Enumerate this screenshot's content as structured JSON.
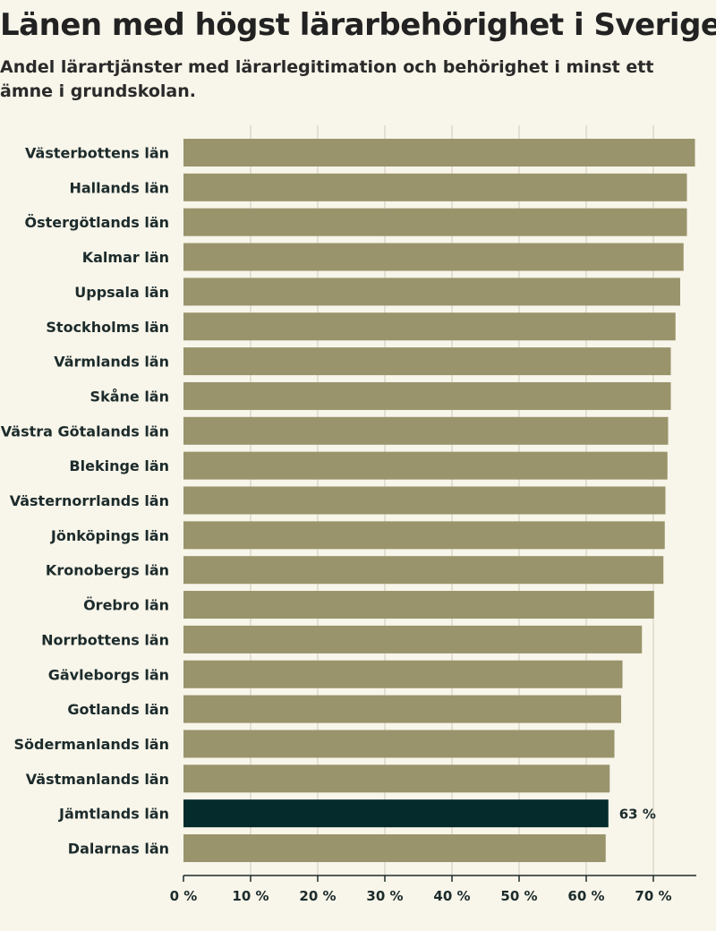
{
  "header": {
    "title": "Länen med högst lärarbehörighet i Sverige",
    "subtitle": "Andel lärartjänster med lärarlegitimation och behörighet i minst ett ämne i grundskolan."
  },
  "colors": {
    "bar": "#99946b",
    "highlight": "#052b2d",
    "grid": "#e3e0d3",
    "axis": "#1c2b2b"
  },
  "chart_data": {
    "type": "bar",
    "orientation": "horizontal",
    "title": "Länen med högst lärarbehörighet i Sverige",
    "subtitle": "Andel lärartjänster med lärarlegitimation och behörighet i minst ett ämne i grundskolan.",
    "categories": [
      "Västerbottens län",
      "Hallands län",
      "Östergötlands län",
      "Kalmar län",
      "Uppsala län",
      "Stockholms län",
      "Värmlands län",
      "Skåne län",
      "Västra Götalands län",
      "Blekinge län",
      "Västernorrlands län",
      "Jönköpings län",
      "Kronobergs län",
      "Örebro län",
      "Norrbottens län",
      "Gävleborgs län",
      "Gotlands län",
      "Södermanlands län",
      "Västmanlands län",
      "Jämtlands län",
      "Dalarnas län"
    ],
    "values": [
      76.2,
      75.0,
      75.0,
      74.5,
      74.0,
      73.3,
      72.6,
      72.6,
      72.2,
      72.1,
      71.8,
      71.7,
      71.5,
      70.1,
      68.3,
      65.4,
      65.2,
      64.2,
      63.5,
      63.3,
      62.9
    ],
    "highlight_index": 19,
    "data_labels": [
      {
        "index": 19,
        "text": "63 %"
      }
    ],
    "xlim": [
      0,
      76.4
    ],
    "xticks": [
      0,
      10,
      20,
      30,
      40,
      50,
      60,
      70
    ],
    "xtick_labels": [
      "0 %",
      "10 %",
      "20 %",
      "30 %",
      "40 %",
      "50 %",
      "60 %",
      "70 %"
    ],
    "grid": true,
    "xlabel": "",
    "ylabel": ""
  }
}
